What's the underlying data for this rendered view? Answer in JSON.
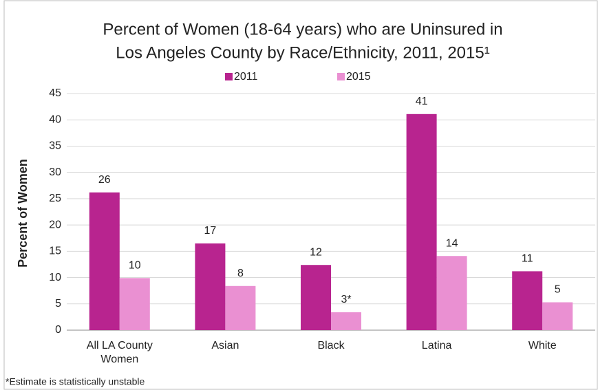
{
  "chart_data": {
    "type": "bar",
    "title": [
      "Percent of Women (18-64 years) who are Uninsured in",
      "Los Angeles County by Race/Ethnicity, 2011, 2015¹"
    ],
    "y_label": "Percent of Women",
    "footnote": "*Estimate is statistically unstable",
    "categories": [
      "All LA County Women",
      "Asian",
      "Black",
      "Latina",
      "White"
    ],
    "series": [
      {
        "name": "2011",
        "color": "#b8248f",
        "values": [
          26.2,
          16.5,
          12.4,
          41.1,
          11.2
        ],
        "value_labels": [
          "26",
          "17",
          "12",
          "41",
          "11"
        ]
      },
      {
        "name": "2015",
        "color": "#ea90d2",
        "values": [
          9.9,
          8.4,
          3.4,
          14.1,
          5.3
        ],
        "value_labels": [
          "10",
          "8",
          "3*",
          "14",
          "5"
        ]
      }
    ],
    "ylim": [
      0,
      45
    ],
    "yticks": [
      0,
      5,
      10,
      15,
      20,
      25,
      30,
      35,
      40,
      45
    ],
    "grid": true,
    "legend": "top"
  }
}
